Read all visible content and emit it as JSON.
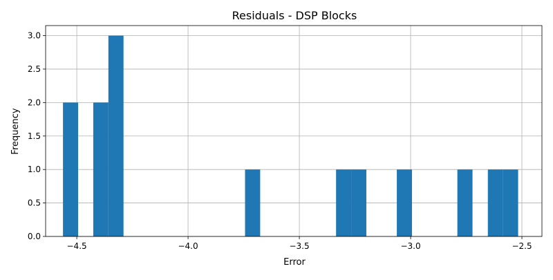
{
  "chart_data": {
    "type": "bar",
    "title": "Residuals - DSP Blocks",
    "xlabel": "Error",
    "ylabel": "Frequency",
    "xlim": [
      -4.64,
      -2.41
    ],
    "ylim": [
      0,
      3.15
    ],
    "grid": true,
    "bar_color": "#1f77b4",
    "x_ticks": [
      {
        "value": -4.5,
        "label": "−4.5"
      },
      {
        "value": -4.0,
        "label": "−4.0"
      },
      {
        "value": -3.5,
        "label": "−3.5"
      },
      {
        "value": -3.0,
        "label": "−3.0"
      },
      {
        "value": -2.5,
        "label": "−2.5"
      }
    ],
    "y_ticks": [
      {
        "value": 0.0,
        "label": "0.0"
      },
      {
        "value": 0.5,
        "label": "0.5"
      },
      {
        "value": 1.0,
        "label": "1.0"
      },
      {
        "value": 1.5,
        "label": "1.5"
      },
      {
        "value": 2.0,
        "label": "2.0"
      },
      {
        "value": 2.5,
        "label": "2.5"
      },
      {
        "value": 3.0,
        "label": "3.0"
      }
    ],
    "bins": [
      {
        "x0": -4.562,
        "x1": -4.494,
        "count": 2
      },
      {
        "x0": -4.426,
        "x1": -4.358,
        "count": 2
      },
      {
        "x0": -4.358,
        "x1": -4.29,
        "count": 3
      },
      {
        "x0": -3.744,
        "x1": -3.676,
        "count": 1
      },
      {
        "x0": -3.335,
        "x1": -3.267,
        "count": 1
      },
      {
        "x0": -3.267,
        "x1": -3.199,
        "count": 1
      },
      {
        "x0": -3.062,
        "x1": -2.994,
        "count": 1
      },
      {
        "x0": -2.79,
        "x1": -2.722,
        "count": 1
      },
      {
        "x0": -2.653,
        "x1": -2.585,
        "count": 1
      },
      {
        "x0": -2.585,
        "x1": -2.517,
        "count": 1
      }
    ]
  }
}
